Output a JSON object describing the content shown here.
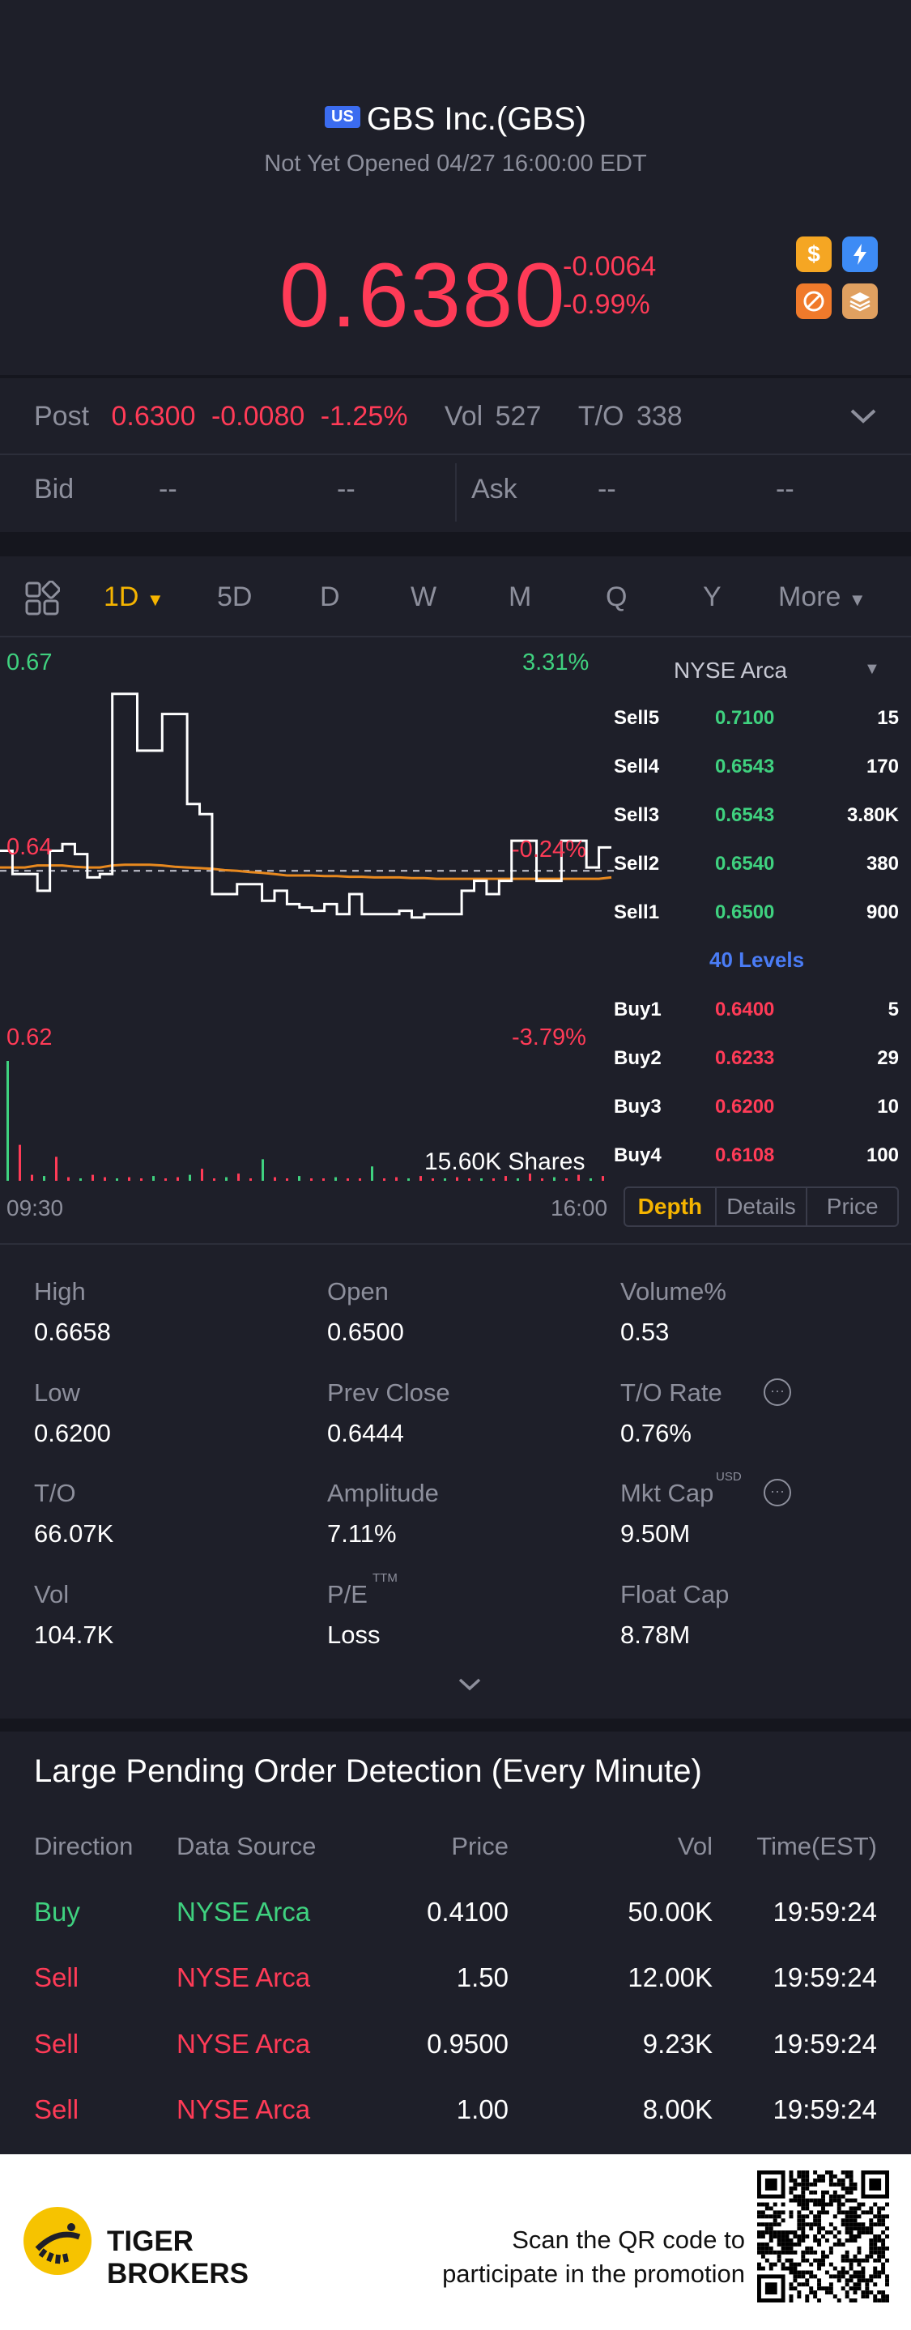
{
  "header": {
    "market_badge": "US",
    "title": "GBS Inc.(GBS)",
    "status": "Not Yet Opened 04/27 16:00:00 EDT",
    "price": "0.6380",
    "change": "-0.0064",
    "change_pct": "-0.99%",
    "icons": [
      "dollar-icon",
      "flash-icon",
      "no-margin-icon",
      "stack-icon"
    ]
  },
  "post": {
    "label": "Post",
    "price": "0.6300",
    "change": "-0.0080",
    "change_pct": "-1.25%",
    "vol_label": "Vol",
    "vol": "527",
    "to_label": "T/O",
    "to": "338"
  },
  "quote": {
    "bid_label": "Bid",
    "bid_price": "--",
    "bid_size": "--",
    "ask_label": "Ask",
    "ask_price": "--",
    "ask_size": "--"
  },
  "tabs": {
    "items": [
      "1D",
      "5D",
      "D",
      "W",
      "M",
      "Q",
      "Y",
      "More"
    ],
    "selected": "1D"
  },
  "chart": {
    "y_high": "0.67",
    "y_mid": "0.64",
    "y_low": "0.62",
    "pct_high": "3.31%",
    "pct_mid": "-0.24%",
    "pct_low": "-3.79%",
    "volume_label": "15.60K Shares",
    "x_start": "09:30",
    "x_end": "16:00"
  },
  "chart_data": {
    "type": "line",
    "ylim": [
      0.62,
      0.67
    ],
    "prev_close": 0.64,
    "series": [
      {
        "values": [
          0.643,
          0.6395,
          0.6395,
          0.637,
          0.643,
          0.644,
          0.6425,
          0.639,
          0.6395,
          0.6665,
          0.6665,
          0.658,
          0.658,
          0.6635,
          0.6635,
          0.65,
          0.6485,
          0.6365,
          0.6365,
          0.638,
          0.638,
          0.6355,
          0.637,
          0.635,
          0.6345,
          0.634,
          0.635,
          0.6335,
          0.6365,
          0.6335,
          0.6335,
          0.6335,
          0.634,
          0.633,
          0.6335,
          0.6335,
          0.6335,
          0.637,
          0.6385,
          0.6365,
          0.6385,
          0.6445,
          0.6445,
          0.6385,
          0.6385,
          0.6445,
          0.6445,
          0.6405,
          0.6435,
          0.6435
        ]
      },
      {
        "values": [
          0.6405,
          0.6405,
          0.6405,
          0.6408,
          0.6408,
          0.6408,
          0.6406,
          0.6405,
          0.6405,
          0.6408,
          0.6409,
          0.6409,
          0.6409,
          0.6408,
          0.6406,
          0.6405,
          0.6404,
          0.6403,
          0.6401,
          0.64,
          0.6398,
          0.6397,
          0.6395,
          0.6393,
          0.6393,
          0.6393,
          0.6392,
          0.6392,
          0.6391,
          0.6391,
          0.639,
          0.639,
          0.639,
          0.6389,
          0.6389,
          0.6388,
          0.6388,
          0.6388,
          0.6388,
          0.6388,
          0.6388,
          0.6388,
          0.6388,
          0.6388,
          0.6388,
          0.6388,
          0.6388,
          0.6388,
          0.6388,
          0.639
        ]
      }
    ],
    "volume_max": 15.6
  },
  "depth": {
    "exchange": "NYSE Arca",
    "sells": [
      {
        "label": "Sell5",
        "price": "0.7100",
        "size": "15"
      },
      {
        "label": "Sell4",
        "price": "0.6543",
        "size": "170"
      },
      {
        "label": "Sell3",
        "price": "0.6543",
        "size": "3.80K"
      },
      {
        "label": "Sell2",
        "price": "0.6540",
        "size": "380"
      },
      {
        "label": "Sell1",
        "price": "0.6500",
        "size": "900"
      }
    ],
    "levels_label": "40 Levels",
    "buys": [
      {
        "label": "Buy1",
        "price": "0.6400",
        "size": "5"
      },
      {
        "label": "Buy2",
        "price": "0.6233",
        "size": "29"
      },
      {
        "label": "Buy3",
        "price": "0.6200",
        "size": "10"
      },
      {
        "label": "Buy4",
        "price": "0.6108",
        "size": "100"
      }
    ],
    "tabs": [
      "Depth",
      "Details",
      "Price"
    ]
  },
  "stats": {
    "high_label": "High",
    "high": "0.6658",
    "open_label": "Open",
    "open": "0.6500",
    "volpct_label": "Volume%",
    "volpct": "0.53",
    "low_label": "Low",
    "low": "0.6200",
    "prevclose_label": "Prev Close",
    "prevclose": "0.6444",
    "torate_label": "T/O Rate",
    "torate": "0.76%",
    "to_label": "T/O",
    "to": "66.07K",
    "amp_label": "Amplitude",
    "amp": "7.11%",
    "mktcap_label": "Mkt Cap",
    "mktcap_unit": "USD",
    "mktcap": "9.50M",
    "vol_label": "Vol",
    "vol": "104.7K",
    "pe_label": "P/E",
    "pe_sup": "TTM",
    "pe": "Loss",
    "float_label": "Float Cap",
    "float": "8.78M"
  },
  "orders": {
    "title": "Large Pending Order Detection (Every Minute)",
    "headers": [
      "Direction",
      "Data Source",
      "Price",
      "Vol",
      "Time(EST)"
    ],
    "rows": [
      {
        "direction": "Buy",
        "source": "NYSE Arca",
        "price": "0.4100",
        "vol": "50.00K",
        "time": "19:59:24"
      },
      {
        "direction": "Sell",
        "source": "NYSE Arca",
        "price": "1.50",
        "vol": "12.00K",
        "time": "19:59:24"
      },
      {
        "direction": "Sell",
        "source": "NYSE Arca",
        "price": "0.9500",
        "vol": "9.23K",
        "time": "19:59:24"
      },
      {
        "direction": "Sell",
        "source": "NYSE Arca",
        "price": "1.00",
        "vol": "8.00K",
        "time": "19:59:24"
      }
    ]
  },
  "footer": {
    "brand_line1": "TIGER",
    "brand_line2": "BROKERS",
    "promo_line1": "Scan the QR code to",
    "promo_line2": "participate in the promotion"
  },
  "colors": {
    "up": "#3fd17f",
    "down": "#ff3b57",
    "accent": "#f5b400",
    "link": "#4a7cf5",
    "avg_line": "#e8891f"
  }
}
